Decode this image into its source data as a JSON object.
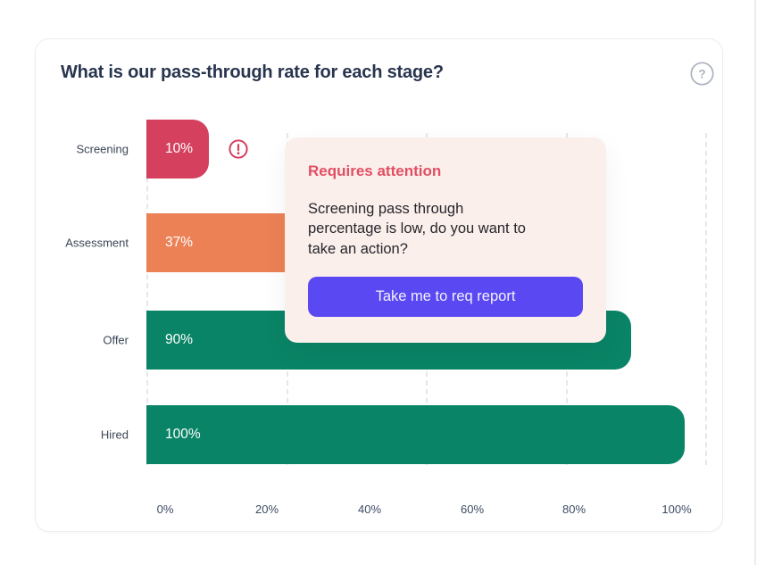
{
  "card": {
    "title": "What is our pass-through rate for each stage?",
    "help_icon": "question-mark-circle-icon"
  },
  "chart_data": {
    "type": "bar",
    "orientation": "horizontal",
    "title": "What is our pass-through rate for each stage?",
    "categories": [
      "Screening",
      "Assessment",
      "Offer",
      "Hired"
    ],
    "values": [
      10,
      37,
      90,
      100
    ],
    "value_labels": [
      "10%",
      "37%",
      "90%",
      "100%"
    ],
    "colors": [
      "#D5405F",
      "#EC8156",
      "#0A8466",
      "#0A8466"
    ],
    "xlabel": "",
    "ylabel": "",
    "xlim": [
      0,
      100
    ],
    "ticks": [
      "0%",
      "20%",
      "40%",
      "60%",
      "80%",
      "100%"
    ],
    "grid": "vertical-dashed",
    "legend": "none",
    "alert": {
      "category": "Screening",
      "icon": "exclamation-circle-icon",
      "color": "#D5405F"
    }
  },
  "popup": {
    "title": "Requires attention",
    "message": "Screening pass through percentage is low, do you want to take an action?",
    "message_lines": [
      "Screening pass through",
      "percentage is low, do you want to",
      "take an action?"
    ],
    "button_label": "Take me to req report",
    "accent_color": "#E14F63",
    "button_color": "#5A49F2",
    "background_color": "#FBEFEC"
  }
}
